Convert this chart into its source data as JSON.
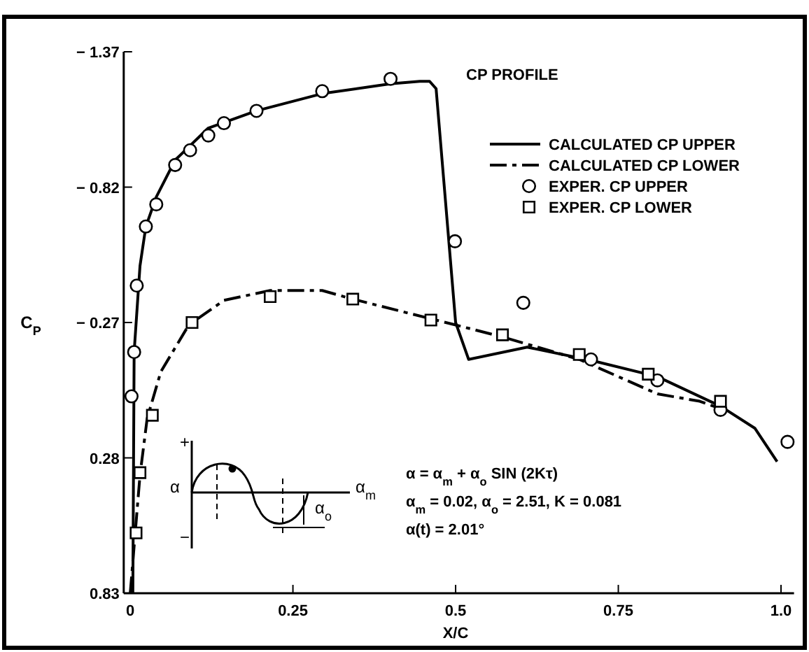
{
  "chart_data": {
    "type": "line",
    "title": "CP PROFILE",
    "xlabel": "X/C",
    "ylabel": "C$_{P}$",
    "xlim": [
      -0.01,
      1.02
    ],
    "ylim": [
      0.83,
      -1.37
    ],
    "xticks": [
      0,
      0.25,
      0.5,
      0.75,
      {
        "value": 1.0,
        "label": "1.0"
      }
    ],
    "yticks": [
      {
        "value": -1.37,
        "label": "− 1.37"
      },
      {
        "value": -0.82,
        "label": "− 0.82"
      },
      {
        "value": -0.27,
        "label": "− 0.27"
      },
      0.28,
      0.83
    ],
    "grid": false,
    "legend": "top right",
    "series": [
      {
        "name": "CALCULATED CP UPPER",
        "color": "#000000",
        "line_style": "solid",
        "marker": "none",
        "x": [
          0.004,
          0.006,
          0.015,
          0.024,
          0.04,
          0.069,
          0.12,
          0.194,
          0.295,
          0.4,
          0.445,
          0.46,
          0.47,
          0.5,
          0.52,
          0.61,
          0.71,
          0.81,
          0.907,
          0.96,
          0.994
        ],
        "values": [
          0.83,
          -0.15,
          -0.5,
          -0.66,
          -0.78,
          -0.93,
          -1.06,
          -1.13,
          -1.2,
          -1.24,
          -1.25,
          -1.25,
          -1.22,
          -0.27,
          -0.12,
          -0.17,
          -0.115,
          -0.05,
          0.07,
          0.16,
          0.295
        ]
      },
      {
        "name": "CALCULATED CP LOWER",
        "color": "#000000",
        "line_style": "dashed",
        "marker": "none",
        "x": [
          0.0,
          0.015,
          0.026,
          0.047,
          0.09,
          0.144,
          0.215,
          0.295,
          0.342,
          0.462,
          0.5,
          0.574,
          0.69,
          0.81,
          0.875,
          0.907
        ],
        "values": [
          0.83,
          0.35,
          0.12,
          -0.07,
          -0.26,
          -0.36,
          -0.4,
          -0.4,
          -0.365,
          -0.285,
          -0.26,
          -0.21,
          -0.12,
          0.02,
          0.05,
          0.08
        ]
      },
      {
        "name": "EXPER. CP UPPER",
        "type": "scatter",
        "color": "#000000",
        "marker": "circle",
        "x": [
          0.002,
          0.006,
          0.01,
          0.024,
          0.04,
          0.069,
          0.092,
          0.12,
          0.144,
          0.194,
          0.295,
          0.4,
          0.499,
          0.604,
          0.708,
          0.81,
          0.907,
          1.01
        ],
        "values": [
          0.03,
          -0.15,
          -0.42,
          -0.66,
          -0.75,
          -0.91,
          -0.97,
          -1.03,
          -1.08,
          -1.13,
          -1.21,
          -1.26,
          -0.6,
          -0.35,
          -0.12,
          -0.035,
          0.085,
          0.215
        ]
      },
      {
        "name": "EXPER. CP LOWER",
        "type": "scatter",
        "color": "#000000",
        "marker": "square",
        "x": [
          0.009,
          0.015,
          0.034,
          0.095,
          0.215,
          0.342,
          0.462,
          0.572,
          0.69,
          0.796,
          0.907
        ],
        "values": [
          0.585,
          0.34,
          0.107,
          -0.27,
          -0.375,
          -0.365,
          -0.28,
          -0.22,
          -0.14,
          -0.06,
          0.05
        ]
      }
    ],
    "annotations": [
      "α = α$_{m}$ + α$_{o}$ SIN (2Kτ)",
      "α$_{m}$ = 0.02, α$_{o}$ = 2.51, K = 0.081",
      "α(t) = 2.01°",
      "+",
      "α",
      "−",
      "α$_{m}$",
      "α$_{o}$"
    ]
  }
}
